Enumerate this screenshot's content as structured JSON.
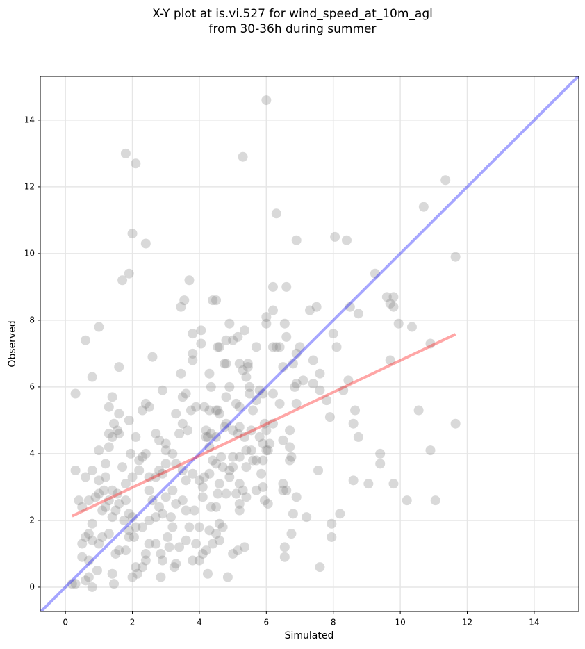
{
  "chart_data": {
    "type": "scatter",
    "title": [
      "X-Y plot at is.vi.527 for wind_speed_at_10m_agl",
      "from 30-36h during summer"
    ],
    "xlabel": "Simulated",
    "ylabel": "Observed",
    "xlim": [
      -0.75,
      15.33
    ],
    "ylim": [
      -0.73,
      15.31
    ],
    "xticks": [
      0,
      2,
      4,
      6,
      8,
      10,
      12,
      14
    ],
    "yticks": [
      0,
      2,
      4,
      6,
      8,
      10,
      12,
      14
    ],
    "grid": true,
    "color": "#808080",
    "alpha": 0.3,
    "x": [
      6.0,
      1.8,
      2.1,
      5.3,
      11.35,
      10.7,
      6.3,
      2.0,
      2.4,
      6.9,
      8.05,
      8.4,
      11.65,
      1.9,
      1.7,
      3.7,
      9.25,
      9.8,
      9.6,
      9.7,
      9.8,
      8.5,
      8.75,
      9.95,
      10.35,
      10.9,
      9.7,
      11.65,
      10.55,
      10.9,
      11.05,
      10.2,
      9.8,
      9.4,
      9.4,
      9.05,
      8.6,
      8.75,
      8.6,
      8.65,
      8.45,
      8.3,
      8.2,
      7.95,
      7.95,
      7.6,
      7.9,
      8.0,
      8.1,
      7.5,
      7.3,
      7.0,
      6.55,
      6.6,
      6.4,
      6.2,
      6.2,
      6.2,
      6.6,
      6.0,
      6.0,
      7.6,
      7.4,
      7.4,
      7.6,
      7.8,
      7.1,
      6.9,
      6.85,
      6.9,
      6.8,
      6.9,
      6.5,
      6.2,
      6.4,
      6.7,
      6.7,
      6.7,
      6.75,
      6.5,
      6.5,
      6.6,
      6.9,
      6.8,
      7.2,
      6.75,
      6.55,
      6.55,
      7.55,
      6.05,
      5.95,
      5.7,
      5.9,
      6.0,
      6.0,
      5.95,
      5.8,
      5.7,
      5.5,
      5.6,
      5.9,
      5.2,
      5.3,
      5.45,
      5.45,
      5.4,
      5.35,
      5.15,
      5.0,
      4.9,
      4.8,
      4.6,
      4.55,
      4.4,
      4.5,
      3.8,
      4.05,
      4.05,
      3.8,
      3.8,
      3.55,
      3.45,
      3.45,
      3.5,
      3.6,
      3.75,
      3.65,
      3.4,
      3.5,
      4.3,
      4.35,
      4.15,
      4.75,
      4.8,
      4.9,
      5.1,
      5.2,
      4.8,
      4.55,
      4.5,
      4.6,
      4.3,
      3.9,
      4.2,
      4.2,
      4.35,
      4.25,
      4.3,
      4.5,
      4.75,
      4.8,
      5.0,
      5.15,
      5.2,
      5.35,
      5.4,
      5.6,
      5.8,
      5.9,
      5.9,
      5.85,
      5.4,
      5.2,
      5.0,
      4.9,
      4.9,
      5.0,
      5.2,
      5.3,
      5.4,
      5.1,
      5.2,
      5.2,
      4.7,
      4.65,
      4.5,
      4.4,
      4.3,
      4.6,
      4.8,
      4.55,
      4.5,
      4.35,
      4.1,
      4.1,
      4.15,
      4.0,
      3.8,
      3.6,
      3.5,
      3.3,
      3.2,
      3.0,
      3.0,
      2.9,
      2.8,
      2.7,
      2.5,
      2.5,
      2.6,
      2.8,
      3.0,
      3.2,
      3.3,
      3.5,
      3.6,
      3.85,
      3.7,
      4.0,
      4.3,
      4.5,
      4.6,
      4.4,
      4.2,
      4.0,
      3.8,
      3.6,
      3.4,
      3.3,
      2.9,
      2.85,
      2.7,
      2.5,
      2.4,
      2.4,
      2.3,
      2.1,
      2.0,
      2.15,
      2.85,
      3.05,
      3.2,
      3.15,
      2.9,
      2.7,
      2.5,
      2.3,
      2.1,
      2.05,
      1.9,
      1.9,
      1.8,
      1.6,
      1.5,
      1.4,
      1.45,
      1.3,
      1.1,
      1.0,
      0.8,
      0.8,
      0.7,
      0.6,
      0.5,
      0.5,
      0.7,
      0.7,
      0.8,
      0.6,
      0.3,
      0.2,
      0.3,
      0.6,
      0.4,
      0.5,
      0.7,
      0.9,
      1.0,
      1.0,
      1.2,
      1.2,
      1.3,
      1.3,
      1.4,
      1.45,
      1.55,
      1.6,
      1.4,
      1.3,
      1.6,
      1.9,
      1.95,
      2.1,
      2.2,
      2.3,
      2.4,
      2.3,
      2.4,
      2.5,
      2.6,
      2.2,
      2.0,
      1.8,
      1.7,
      1.55,
      1.4,
      1.3,
      1.2,
      1.1,
      1.4,
      1.5,
      1.6,
      1.8,
      1.9,
      2.0,
      1.75,
      1.6,
      1.0,
      0.6,
      0.8,
      0.3,
      2.7,
      2.8,
      2.9,
      3.0,
      3.3,
      3.1,
      3.25,
      4.1,
      4.25,
      4.85,
      5.0,
      5.15,
      5.35,
      4.7,
      4.6,
      3.9,
      1.0,
      1.15,
      0.95,
      0.8,
      5.7,
      5.55,
      5.55,
      5.5,
      6.2,
      6.1,
      6.05,
      6.3,
      6.5,
      5.7
    ],
    "values": [
      14.6,
      13.0,
      12.7,
      12.9,
      12.2,
      11.4,
      11.2,
      10.6,
      10.3,
      10.4,
      10.5,
      10.4,
      9.9,
      9.4,
      9.2,
      9.2,
      9.4,
      8.7,
      8.7,
      8.5,
      8.4,
      8.4,
      8.2,
      7.9,
      7.8,
      7.3,
      6.8,
      4.9,
      5.3,
      4.1,
      2.6,
      2.6,
      3.1,
      4.0,
      3.7,
      3.1,
      3.2,
      4.5,
      4.9,
      5.3,
      6.2,
      5.9,
      2.2,
      1.9,
      1.5,
      0.6,
      5.1,
      7.6,
      7.2,
      8.4,
      8.3,
      7.2,
      7.9,
      7.5,
      7.2,
      7.2,
      8.3,
      9.0,
      9.0,
      8.1,
      7.9,
      6.4,
      6.8,
      6.1,
      5.9,
      5.6,
      6.2,
      6.1,
      6.0,
      5.5,
      6.7,
      7.0,
      6.6,
      5.8,
      5.5,
      4.7,
      4.2,
      3.8,
      3.9,
      3.1,
      2.9,
      2.9,
      2.7,
      2.2,
      2.1,
      1.6,
      1.2,
      0.9,
      3.5,
      2.5,
      2.6,
      2.9,
      3.0,
      4.1,
      4.7,
      4.9,
      5.9,
      5.6,
      6.0,
      5.3,
      5.8,
      6.7,
      6.5,
      6.6,
      6.7,
      6.3,
      7.7,
      7.5,
      7.4,
      7.9,
      7.4,
      7.2,
      7.2,
      8.6,
      8.6,
      7.6,
      7.7,
      7.3,
      7.0,
      6.8,
      8.6,
      8.4,
      6.4,
      5.7,
      5.8,
      5.3,
      4.7,
      4.6,
      4.9,
      6.4,
      6.0,
      5.4,
      6.7,
      6.7,
      6.0,
      5.5,
      5.4,
      5.7,
      5.3,
      5.3,
      5.2,
      5.3,
      5.4,
      4.7,
      4.5,
      4.6,
      4.5,
      4.2,
      4.5,
      4.8,
      4.9,
      4.7,
      4.6,
      4.8,
      4.5,
      4.1,
      3.8,
      4.5,
      4.3,
      3.8,
      3.4,
      3.6,
      3.9,
      3.9,
      3.5,
      3.3,
      3.6,
      3.1,
      2.9,
      2.7,
      2.8,
      2.5,
      2.3,
      3.6,
      3.9,
      3.7,
      3.8,
      3.4,
      3.1,
      2.8,
      2.8,
      2.4,
      2.4,
      2.7,
      3.0,
      3.3,
      3.2,
      3.4,
      3.2,
      3.5,
      3.7,
      4.0,
      4.1,
      3.7,
      3.4,
      3.5,
      3.3,
      3.3,
      2.9,
      2.6,
      2.4,
      2.7,
      2.9,
      2.5,
      2.6,
      2.3,
      2.3,
      1.8,
      1.8,
      1.7,
      1.6,
      1.9,
      1.3,
      1.1,
      0.8,
      0.8,
      1.4,
      1.2,
      0.7,
      0.8,
      1.0,
      1.3,
      1.3,
      1.0,
      0.8,
      0.6,
      0.6,
      0.3,
      0.4,
      0.3,
      1.5,
      1.8,
      2.1,
      2.2,
      2.1,
      2.0,
      1.8,
      1.8,
      1.5,
      1.5,
      1.7,
      1.1,
      1.1,
      1.0,
      0.4,
      0.1,
      1.6,
      1.5,
      1.3,
      1.4,
      1.9,
      1.6,
      1.5,
      1.3,
      0.9,
      0.8,
      0.3,
      0.0,
      0.2,
      0.1,
      0.1,
      3.5,
      3.3,
      2.6,
      2.4,
      2.6,
      2.7,
      2.8,
      3.2,
      3.3,
      3.7,
      4.2,
      4.6,
      4.5,
      4.9,
      4.7,
      4.6,
      5.7,
      5.4,
      5.2,
      5.0,
      4.0,
      4.5,
      3.8,
      3.9,
      4.0,
      5.3,
      5.5,
      5.4,
      6.9,
      3.5,
      3.3,
      3.1,
      3.6,
      2.8,
      2.9,
      2.6,
      2.4,
      2.3,
      2.1,
      2.3,
      2.5,
      2.6,
      2.2,
      2.1,
      2.0,
      6.6,
      7.8,
      7.4,
      6.3,
      5.8,
      4.6,
      4.4,
      5.9,
      4.3,
      5.2,
      1.2,
      0.6,
      1.0,
      0.4,
      0.3,
      1.0,
      1.1,
      1.2,
      1.8,
      1.4,
      1.3,
      4.1,
      2.9,
      0.5,
      3.5,
      3.8,
      4.1,
      4.7,
      5.8,
      4.9,
      4.3,
      4.1,
      7.2,
      4.4,
      7.2
    ],
    "lines": [
      {
        "color": "#0000ff",
        "alpha": 0.35,
        "x": [
          -0.75,
          15.33
        ],
        "values": [
          -0.75,
          15.33
        ]
      },
      {
        "color": "#ff0000",
        "alpha": 0.35,
        "x": [
          0.2,
          11.65
        ],
        "values": [
          2.13,
          7.58
        ]
      }
    ]
  }
}
